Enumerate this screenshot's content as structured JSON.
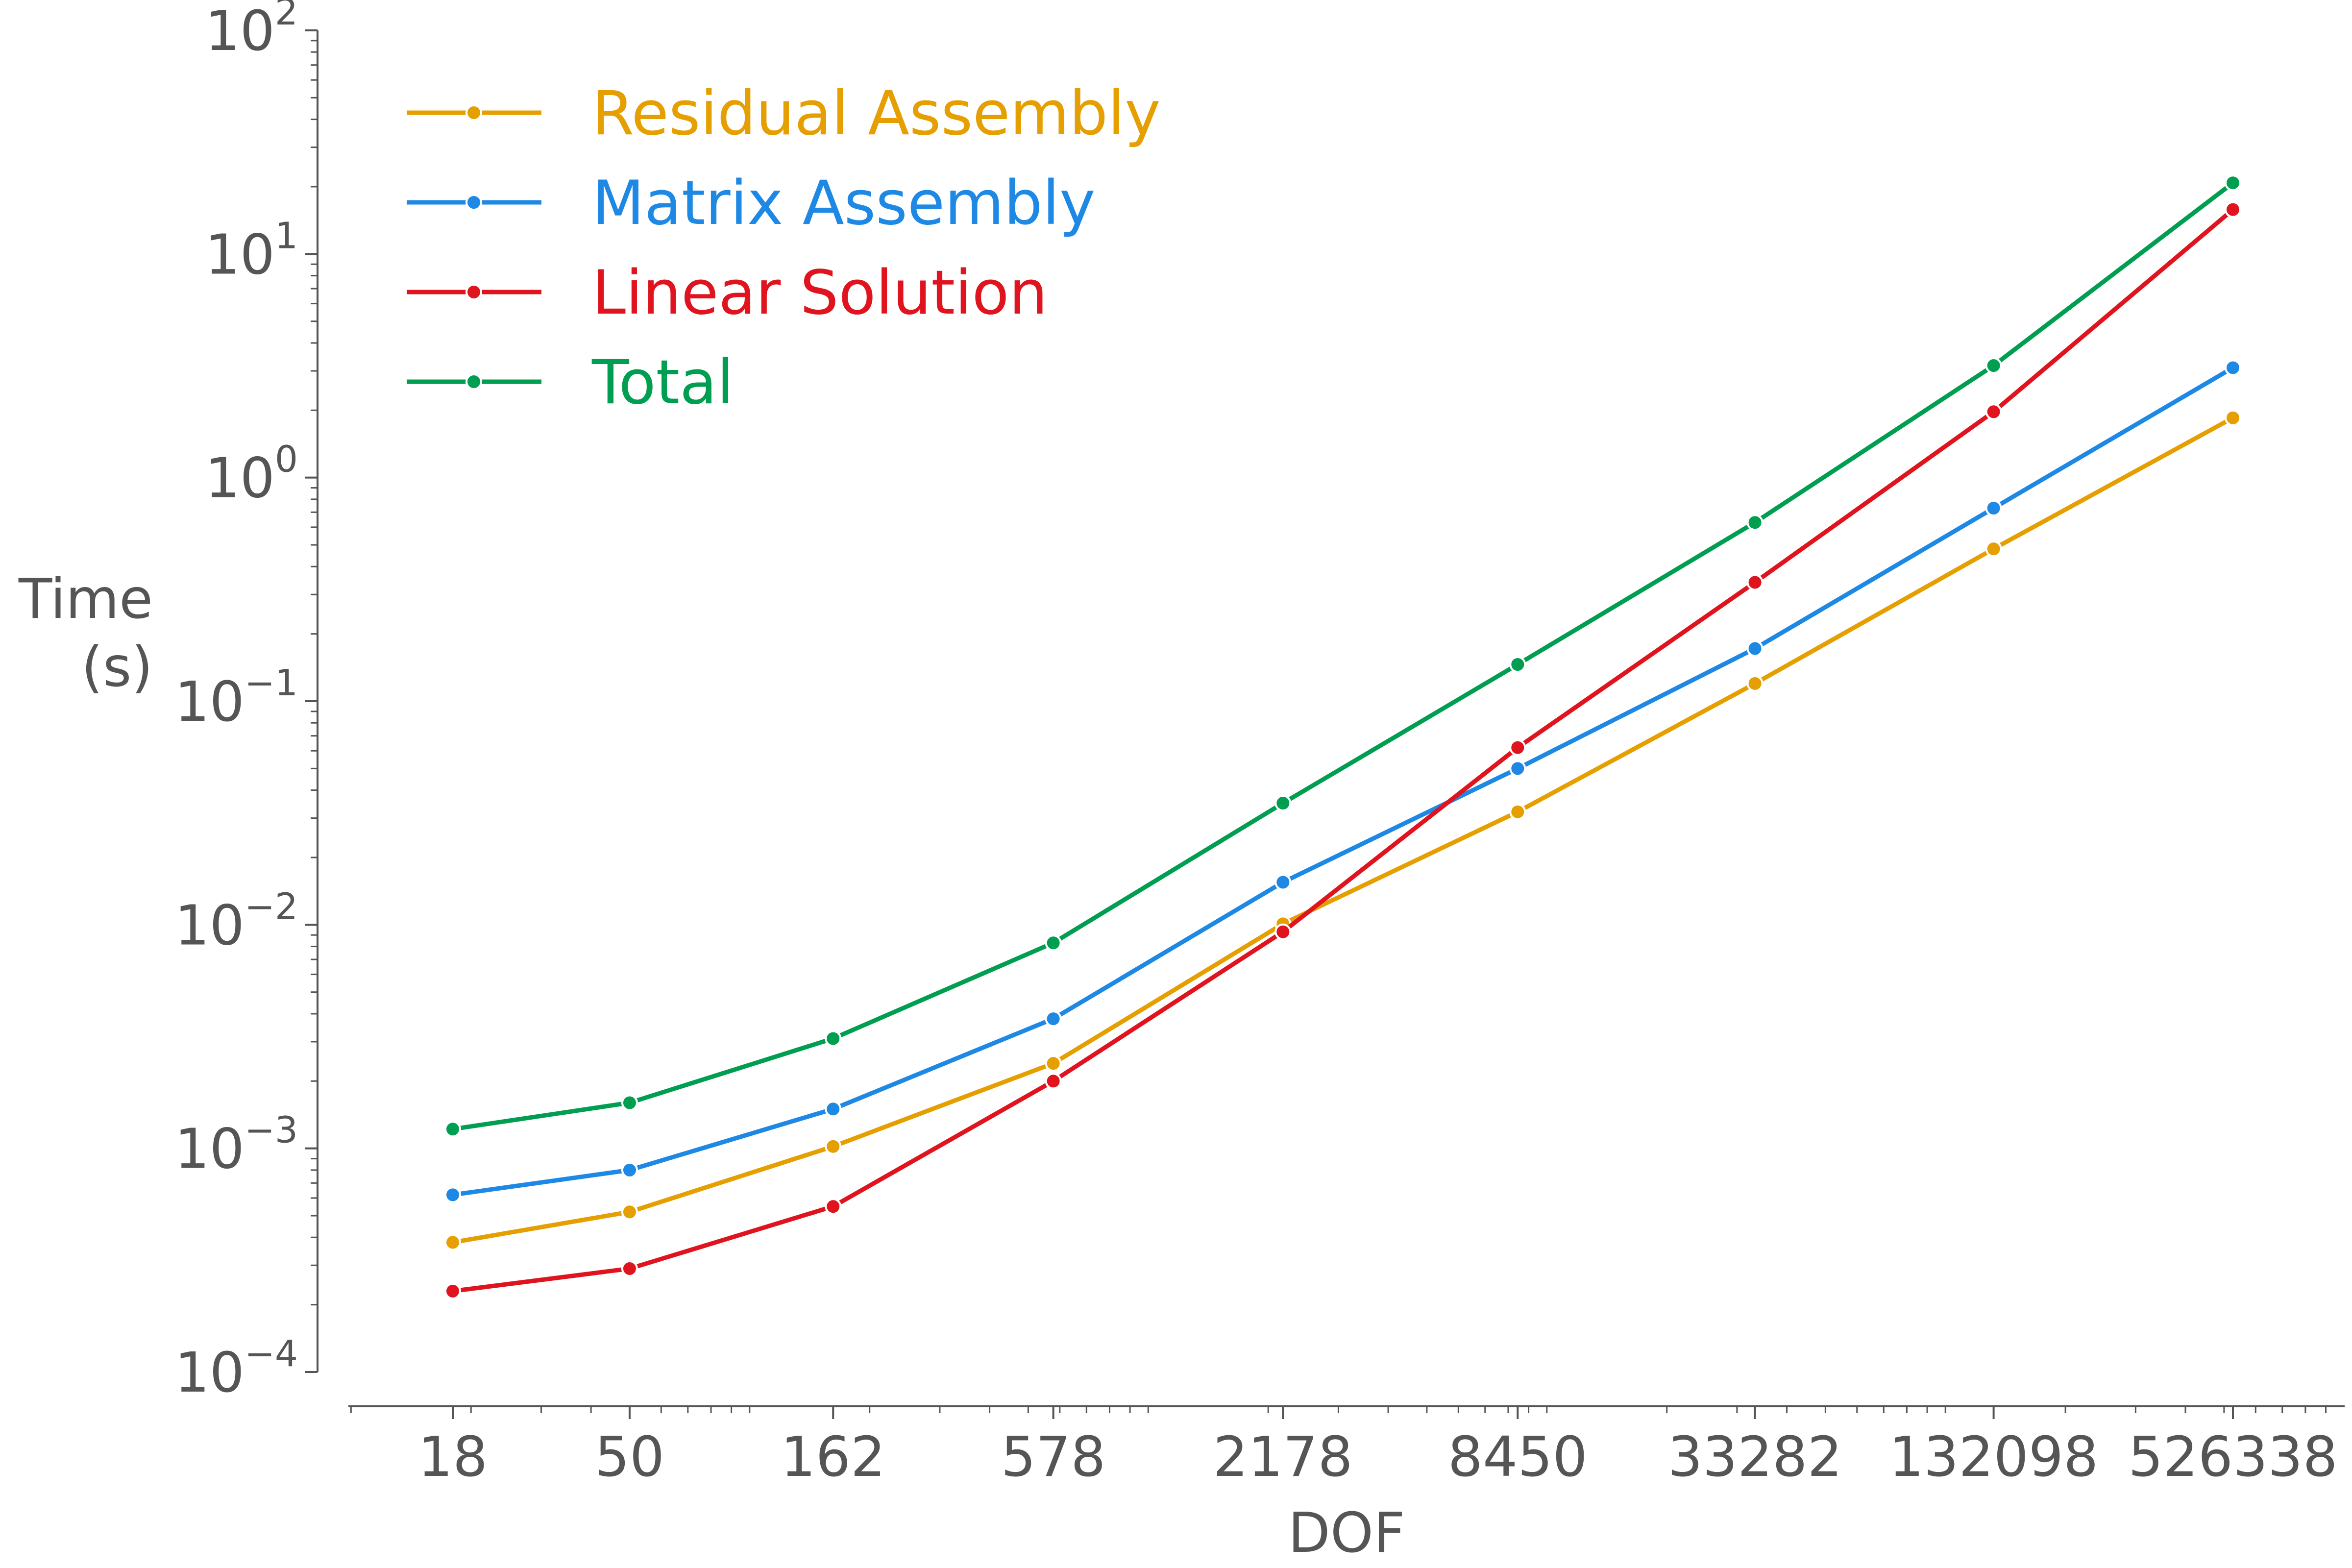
{
  "chart_data": {
    "type": "line",
    "title": "",
    "xlabel": "DOF",
    "ylabel_lines": [
      "Time",
      "(s)"
    ],
    "x_scale": "log",
    "y_scale": "log",
    "x": [
      18,
      50,
      162,
      578,
      2178,
      8450,
      33282,
      132098,
      526338
    ],
    "x_tick_labels": [
      "18",
      "50",
      "162",
      "578",
      "2178",
      "8450",
      "33282",
      "132098",
      "526338"
    ],
    "ylim": [
      0.0001,
      100
    ],
    "y_ticks": [
      {
        "value": 0.0001,
        "base": "10",
        "exp": "−4"
      },
      {
        "value": 0.001,
        "base": "10",
        "exp": "−3"
      },
      {
        "value": 0.01,
        "base": "10",
        "exp": "−2"
      },
      {
        "value": 0.1,
        "base": "10",
        "exp": "−1"
      },
      {
        "value": 1,
        "base": "10",
        "exp": "0"
      },
      {
        "value": 10,
        "base": "10",
        "exp": "1"
      },
      {
        "value": 100,
        "base": "10",
        "exp": "2"
      }
    ],
    "legend_position": "top-left",
    "grid": false,
    "series": [
      {
        "name": "Residual Assembly",
        "color": "#E69F00",
        "values": [
          0.00038,
          0.00052,
          0.00102,
          0.0024,
          0.0101,
          0.032,
          0.12,
          0.48,
          1.85
        ]
      },
      {
        "name": "Matrix Assembly",
        "color": "#1E88E5",
        "values": [
          0.00062,
          0.0008,
          0.0015,
          0.0038,
          0.0155,
          0.05,
          0.172,
          0.73,
          3.1
        ]
      },
      {
        "name": "Linear Solution",
        "color": "#E0141E",
        "values": [
          0.00023,
          0.00029,
          0.00055,
          0.002,
          0.0093,
          0.062,
          0.34,
          1.97,
          15.8
        ]
      },
      {
        "name": "Total",
        "color": "#009E50",
        "values": [
          0.00122,
          0.0016,
          0.0031,
          0.0083,
          0.035,
          0.146,
          0.63,
          3.17,
          20.8
        ]
      }
    ]
  }
}
